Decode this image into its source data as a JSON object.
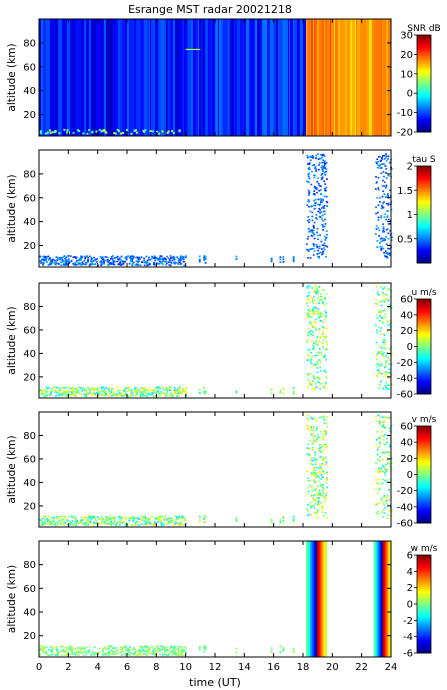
{
  "title": "Esrange MST radar 20021218",
  "xlabel": "time (UT)",
  "xticks": [
    "0",
    "2",
    "4",
    "6",
    "8",
    "10",
    "12",
    "14",
    "16",
    "18",
    "20",
    "22",
    "24"
  ],
  "chart_data": [
    {
      "type": "heatmap",
      "field": "SNR",
      "ylabel": "altitude (km)",
      "yticks": [
        "20",
        "40",
        "60",
        "80"
      ],
      "cbar_label": "SNR dB",
      "cbar_ticks": [
        "30",
        "20",
        "10",
        "0",
        "-10",
        "-20"
      ],
      "clim": [
        -20,
        30
      ],
      "xlim": [
        0,
        24
      ],
      "ylim": [
        2,
        100
      ],
      "background": "#1a5cd6",
      "segments": [
        {
          "x": [
            0,
            9.9
          ],
          "value": -13
        },
        {
          "x": [
            9.9,
            10.0
          ],
          "value": -5
        },
        {
          "x": [
            10.0,
            18.1
          ],
          "value": -12
        },
        {
          "x": [
            18.1,
            19.9
          ],
          "value": 18
        },
        {
          "x": [
            19.9,
            22.6
          ],
          "value": 15
        },
        {
          "x": [
            22.6,
            24
          ],
          "value": 18
        }
      ]
    },
    {
      "type": "heatmap",
      "field": "tau",
      "ylabel": "altitude (km)",
      "yticks": [
        "20",
        "40",
        "60",
        "80"
      ],
      "cbar_label": "tau S",
      "cbar_ticks": [
        "2",
        "1.5",
        "1",
        "0.5"
      ],
      "clim": [
        0,
        2
      ],
      "xlim": [
        0,
        24
      ],
      "ylim": [
        2,
        100
      ]
    },
    {
      "type": "heatmap",
      "field": "u",
      "ylabel": "altitude (km)",
      "yticks": [
        "20",
        "40",
        "60",
        "80"
      ],
      "cbar_label": "u m/s",
      "cbar_ticks": [
        "60",
        "40",
        "20",
        "0",
        "-20",
        "-40",
        "-60"
      ],
      "clim": [
        -60,
        60
      ],
      "xlim": [
        0,
        24
      ],
      "ylim": [
        2,
        100
      ]
    },
    {
      "type": "heatmap",
      "field": "v",
      "ylabel": "altitude (km)",
      "yticks": [
        "20",
        "40",
        "60",
        "80"
      ],
      "cbar_label": "v m/s",
      "cbar_ticks": [
        "60",
        "40",
        "20",
        "0",
        "-20",
        "-40",
        "-60"
      ],
      "clim": [
        -60,
        60
      ],
      "xlim": [
        0,
        24
      ],
      "ylim": [
        2,
        100
      ]
    },
    {
      "type": "heatmap",
      "field": "w",
      "ylabel": "altitude (km)",
      "yticks": [
        "20",
        "40",
        "60",
        "80"
      ],
      "cbar_label": "w m/s",
      "cbar_ticks": [
        "6",
        "4",
        "2",
        "0",
        "-2",
        "-4",
        "-6"
      ],
      "clim": [
        -6,
        6
      ],
      "xlim": [
        0,
        24
      ],
      "ylim": [
        2,
        100
      ]
    }
  ]
}
